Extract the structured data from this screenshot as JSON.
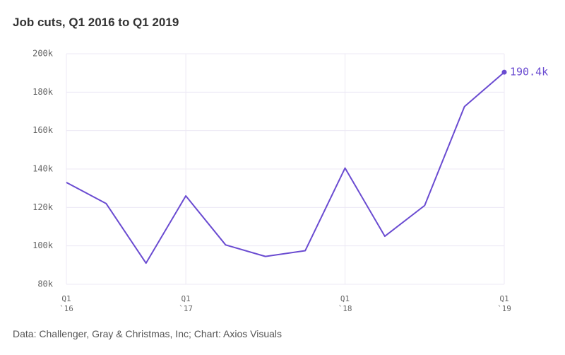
{
  "chart_data": {
    "type": "line",
    "title": "Job cuts, Q1 2016 to Q1 2019",
    "source": "Data: Challenger, Gray & Christmas, Inc; Chart: Axios Visuals",
    "categories": [
      "Q1\n`16",
      null,
      null,
      "Q1\n`17",
      null,
      null,
      null,
      "Q1\n`18",
      null,
      null,
      null,
      "Q1\n`19"
    ],
    "series": [
      {
        "name": "Job cuts",
        "color": "#6a4bd1",
        "values": [
          133000,
          122000,
          91000,
          126000,
          100500,
          94500,
          97500,
          140500,
          105000,
          121000,
          172500,
          190400
        ],
        "value_labels": [
          null,
          null,
          null,
          null,
          null,
          null,
          null,
          null,
          null,
          null,
          null,
          "190.4k"
        ]
      }
    ],
    "ylim": [
      80000,
      200000
    ],
    "yticks": [
      {
        "value": 80000,
        "label": "80k"
      },
      {
        "value": 100000,
        "label": "100k"
      },
      {
        "value": 120000,
        "label": "120k"
      },
      {
        "value": 140000,
        "label": "140k"
      },
      {
        "value": 160000,
        "label": "160k"
      },
      {
        "value": 180000,
        "label": "180k"
      },
      {
        "value": 200000,
        "label": "200k"
      }
    ],
    "grid": true
  }
}
